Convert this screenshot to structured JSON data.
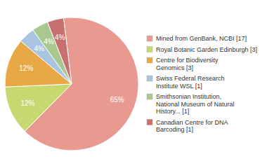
{
  "chart_data": {
    "type": "pie",
    "categories": [
      "Mined from GenBank, NCBI [17]",
      "Royal Botanic Garden Edinburgh [3]",
      "Centre for Biodiversity\nGenomics [3]",
      "Swiss Federal Research\nInstitute WSL [1]",
      "Smithsonian Institution,\nNational Museum of Natural\nHistory... [1]",
      "Canadian Centre for DNA\nBarcoding [1]"
    ],
    "values": [
      65,
      12,
      12,
      4,
      4,
      4
    ],
    "value_labels": [
      "65%",
      "12%",
      "12%",
      "4%",
      "4%",
      "4%"
    ],
    "colors": [
      "#E89A90",
      "#C8D870",
      "#E8A845",
      "#A8C4E0",
      "#A8C890",
      "#C87070"
    ],
    "data_labels": true,
    "legend": "right"
  }
}
